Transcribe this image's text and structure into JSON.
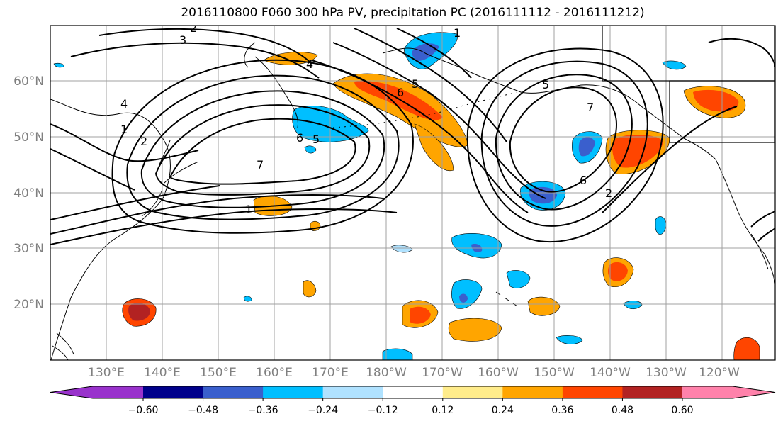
{
  "title": "2016110800 F060 300 hPa PV, precipitation PC (2016111112 - 2016111212)",
  "latitude_labels": [
    "60°N",
    "50°N",
    "40°N",
    "30°N",
    "20°N"
  ],
  "longitude_labels": [
    "130°E",
    "140°E",
    "150°E",
    "160°E",
    "170°E",
    "180°W",
    "170°W",
    "160°W",
    "150°W",
    "140°W",
    "130°W",
    "120°W"
  ],
  "contour_labels": [
    "3",
    "2",
    "4",
    "1",
    "2",
    "6",
    "5",
    "7",
    "1",
    "4",
    "6",
    "5",
    "7",
    "6",
    "2",
    "5",
    "1"
  ],
  "colorbar": {
    "ticks": [
      "−0.60",
      "−0.48",
      "−0.36",
      "−0.24",
      "−0.12",
      "0.12",
      "0.24",
      "0.36",
      "0.48",
      "0.60"
    ],
    "colors": [
      "#9932cc",
      "#00008b",
      "#3a5fcd",
      "#00bfff",
      "#b0e2ff",
      "#ffffff",
      "#ffec8b",
      "#ffa500",
      "#ff4500",
      "#b22222",
      "#ff82ab"
    ]
  },
  "colors": {
    "contour": "#000000",
    "coast": "#000000",
    "grid": "#a0a0a0"
  }
}
